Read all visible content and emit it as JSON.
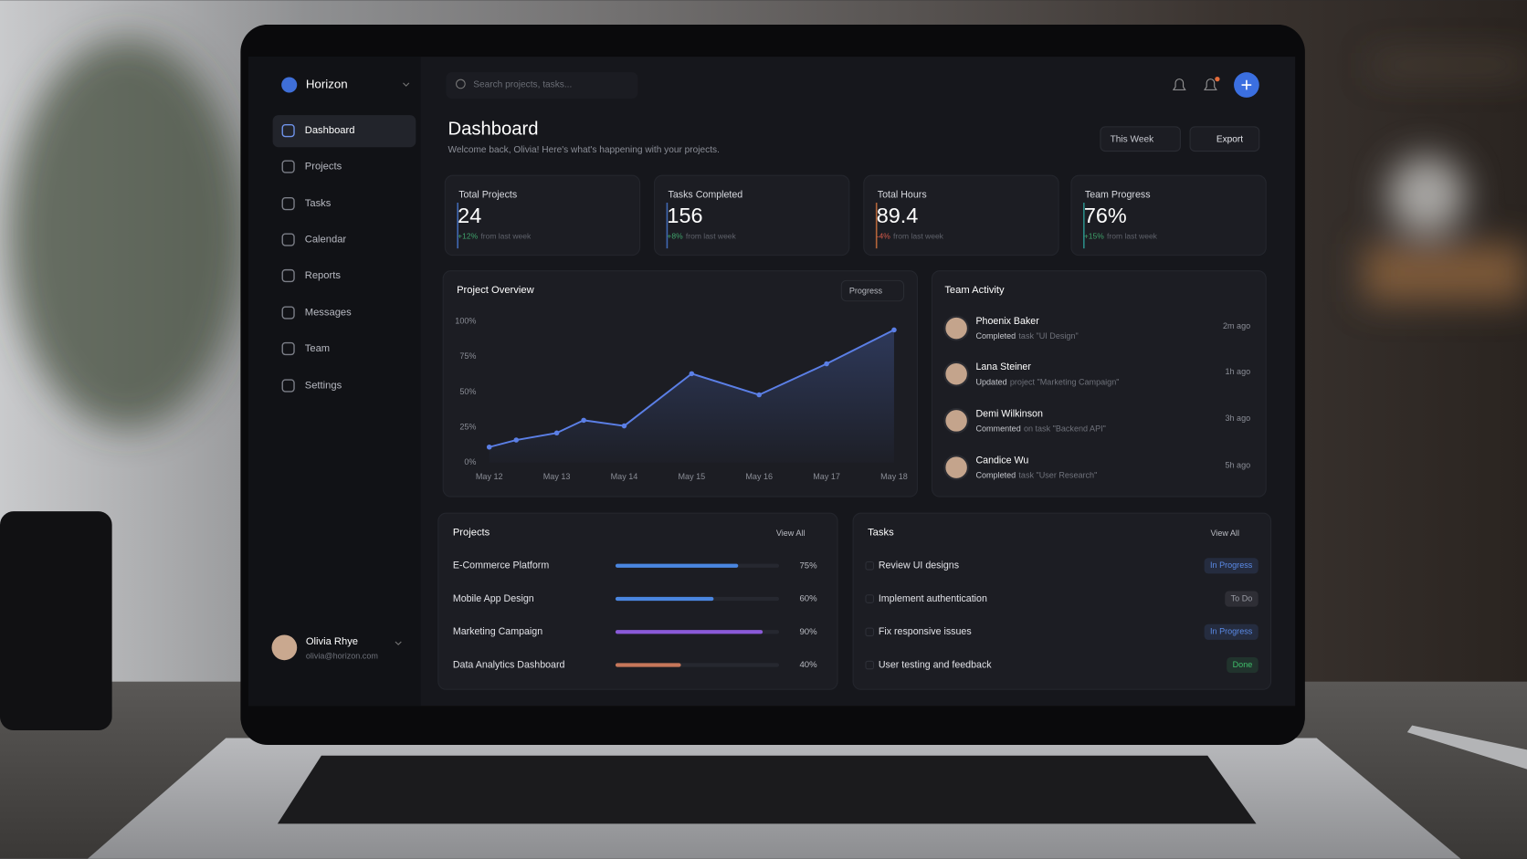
{
  "sidebar": {
    "brand": "Horizon",
    "nav": [
      "Dashboard",
      "Projects",
      "Tasks",
      "Calendar",
      "Reports",
      "Messages",
      "Team",
      "Settings"
    ],
    "user": {
      "name": "Olivia Rhye",
      "email": "olivia@horizon.com"
    }
  },
  "header": {
    "search_placeholder": "Search projects, tasks...",
    "title": "Dashboard",
    "subtitle": "Welcome back, Olivia! Here's what's happening with your projects.",
    "period": "This Week",
    "export": "Export"
  },
  "stats": [
    {
      "label": "Total Projects",
      "value": "24",
      "change": "+12%",
      "note": "from last week",
      "color": "#4a7bd8",
      "change_color": "#3fa36b"
    },
    {
      "label": "Tasks Completed",
      "value": "156",
      "change": "+8%",
      "note": "from last week",
      "color": "#4a7bd8",
      "change_color": "#3fa36b"
    },
    {
      "label": "Total Hours",
      "value": "89.4",
      "change": "-4%",
      "note": "from last week",
      "color": "#d9783f",
      "change_color": "#d65a4a"
    },
    {
      "label": "Team Progress",
      "value": "76%",
      "change": "+15%",
      "note": "from last week",
      "color": "#2fa7a0",
      "change_color": "#3fa36b"
    }
  ],
  "chart_data": {
    "type": "line",
    "title": "Project Overview",
    "control": "Progress",
    "x": [
      0,
      0.4,
      1,
      1.4,
      2,
      3,
      4,
      5,
      6
    ],
    "series": [
      {
        "color": "#5b7fe6",
        "values": [
          11,
          16,
          21,
          30,
          26,
          63,
          48,
          70,
          94
        ]
      }
    ],
    "xlim": [
      -0.15,
      6.1
    ],
    "xticks": [
      {
        "value": 0,
        "label": "May 12"
      },
      {
        "value": 1,
        "label": "May 13"
      },
      {
        "value": 2,
        "label": "May 14"
      },
      {
        "value": 3,
        "label": "May 15"
      },
      {
        "value": 4,
        "label": "May 16"
      },
      {
        "value": 5,
        "label": "May 17"
      },
      {
        "value": 6,
        "label": "May 18"
      }
    ],
    "ylim": [
      0,
      100
    ],
    "yticks": [
      {
        "value": 0,
        "label": "0%"
      },
      {
        "value": 25,
        "label": "25%"
      },
      {
        "value": 50,
        "label": "50%"
      },
      {
        "value": 75,
        "label": "75%"
      },
      {
        "value": 100,
        "label": "100%"
      }
    ],
    "grid": false
  },
  "team_activity": {
    "title": "Team Activity",
    "items": [
      {
        "name": "Phoenix Baker",
        "action": "Completed",
        "detail": "task \"UI Design\"",
        "time": "2m ago"
      },
      {
        "name": "Lana Steiner",
        "action": "Updated",
        "detail": "project \"Marketing Campaign\"",
        "time": "1h ago"
      },
      {
        "name": "Demi Wilkinson",
        "action": "Commented",
        "detail": "on task \"Backend API\"",
        "time": "3h ago"
      },
      {
        "name": "Candice Wu",
        "action": "Completed",
        "detail": "task \"User Research\"",
        "time": "5h ago"
      }
    ]
  },
  "projects": {
    "title": "Projects",
    "view_all": "View All",
    "items": [
      {
        "name": "E-Commerce Platform",
        "value": 75,
        "label": "75%",
        "color": "#4a86e0"
      },
      {
        "name": "Mobile App Design",
        "value": 60,
        "label": "60%",
        "color": "#4a86e0"
      },
      {
        "name": "Marketing Campaign",
        "value": 90,
        "label": "90%",
        "color": "#8a5ad8"
      },
      {
        "name": "Data Analytics Dashboard",
        "value": 40,
        "label": "40%",
        "color": "#c7775a"
      }
    ]
  },
  "tasks": {
    "title": "Tasks",
    "view_all": "View All",
    "items": [
      {
        "name": "Review UI designs",
        "status": "In Progress",
        "color": "#5b8be8"
      },
      {
        "name": "Implement authentication",
        "status": "To Do",
        "color": "#9a9ca5"
      },
      {
        "name": "Fix responsive issues",
        "status": "In Progress",
        "color": "#5b8be8"
      },
      {
        "name": "User testing and feedback",
        "status": "Done",
        "color": "#3fbf6b"
      }
    ]
  }
}
